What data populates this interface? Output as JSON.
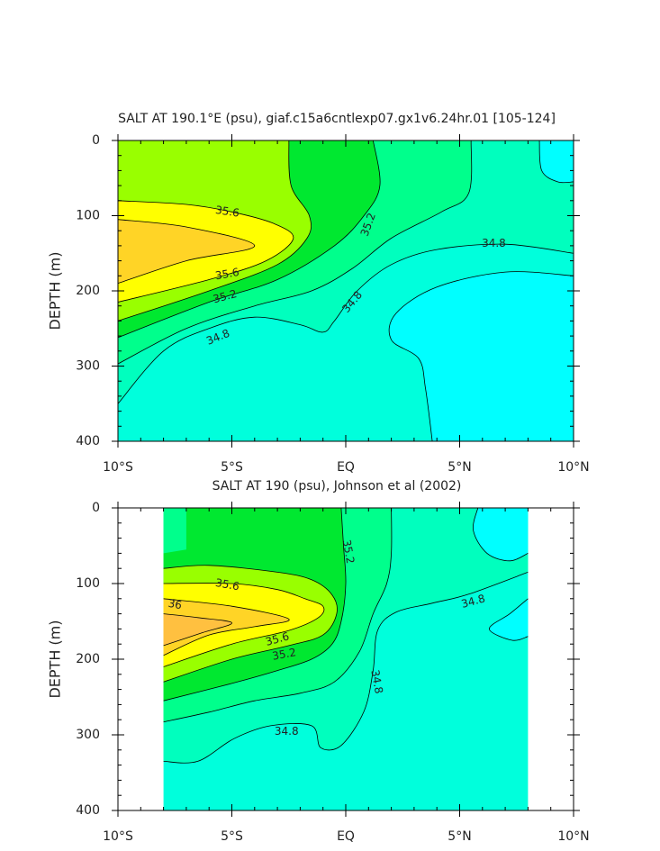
{
  "chart_data": [
    {
      "type": "contour",
      "title": "SALT AT 190.1°E (psu), giaf.c15a6cntlexp07.gx1v6.24hr.01 [105-124]",
      "y_label": "DEPTH (m)",
      "xlim": [
        -10,
        10
      ],
      "xticks": [
        {
          "value": -10,
          "label": "10°S"
        },
        {
          "value": -5,
          "label": "5°S"
        },
        {
          "value": 0,
          "label": "EQ"
        },
        {
          "value": 5,
          "label": "5°N"
        },
        {
          "value": 10,
          "label": "10°N"
        }
      ],
      "ylim": [
        400,
        0
      ],
      "yticks": [
        0,
        100,
        200,
        300,
        400
      ],
      "levels": [
        34.6,
        34.8,
        35.0,
        35.2,
        35.4,
        35.6,
        35.8,
        36.0
      ],
      "level_colors": [
        "#00ffff",
        "#00ffdc",
        "#00ffbe",
        "#00ff8c",
        "#00e830",
        "#99ff00",
        "#ffff00",
        "#ffd426",
        "#ffc040"
      ],
      "contour_labels": [
        35.6,
        35.6,
        35.2,
        34.8,
        34.8,
        35.2,
        34.8
      ]
    },
    {
      "type": "contour",
      "title": "SALT AT 190 (psu), Johnson et al (2002)",
      "y_label": "DEPTH (m)",
      "xlim": [
        -10,
        10
      ],
      "xticks": [
        {
          "value": -10,
          "label": "10°S"
        },
        {
          "value": -5,
          "label": "5°S"
        },
        {
          "value": 0,
          "label": "EQ"
        },
        {
          "value": 5,
          "label": "5°N"
        },
        {
          "value": 10,
          "label": "10°N"
        }
      ],
      "ylim": [
        400,
        0
      ],
      "yticks": [
        0,
        100,
        200,
        300,
        400
      ],
      "levels": [
        34.6,
        34.8,
        35.0,
        35.2,
        35.4,
        35.6,
        35.8,
        36.0
      ],
      "level_colors": [
        "#00ffff",
        "#00ffdc",
        "#00ffbe",
        "#00ff8c",
        "#00e830",
        "#99ff00",
        "#ffff00",
        "#ffd426",
        "#ffc040"
      ],
      "contour_labels": [
        35.2,
        35.6,
        36,
        35.6,
        35.2,
        34.8,
        34.8,
        34.8
      ]
    }
  ]
}
